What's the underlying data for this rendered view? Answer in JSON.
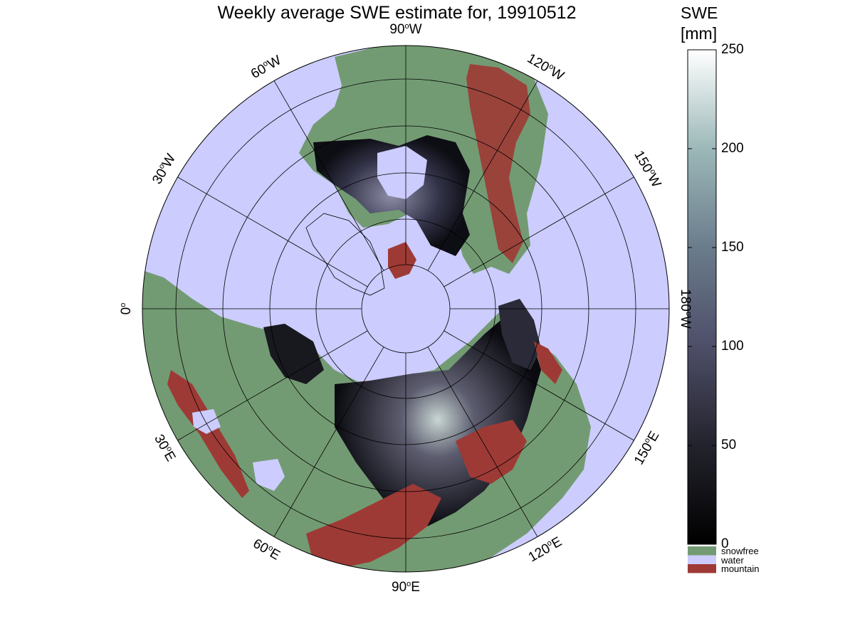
{
  "title": "Weekly average SWE estimate for, 19910512",
  "map": {
    "projection": "north polar stereographic",
    "colors": {
      "water": "#ccccff",
      "snowfree": "#739b73",
      "mountain": "#9e3a35",
      "swe_low": "#000000",
      "swe_high": "#ffffff"
    },
    "longitude_labels": [
      {
        "deg": "90",
        "dir": "W"
      },
      {
        "deg": "120",
        "dir": "W"
      },
      {
        "deg": "150",
        "dir": "W"
      },
      {
        "deg": "180",
        "dir": "W"
      },
      {
        "deg": "150",
        "dir": "E"
      },
      {
        "deg": "120",
        "dir": "E"
      },
      {
        "deg": "90",
        "dir": "E"
      },
      {
        "deg": "60",
        "dir": "E"
      },
      {
        "deg": "30",
        "dir": "E"
      },
      {
        "deg": "0",
        "dir": ""
      },
      {
        "deg": "30",
        "dir": "W"
      },
      {
        "deg": "60",
        "dir": "W"
      }
    ]
  },
  "colorbar": {
    "title_line1": "SWE",
    "title_line2": "[mm]",
    "min": 0,
    "max": 250,
    "ticks": [
      "0",
      "50",
      "100",
      "150",
      "200",
      "250"
    ],
    "legend": [
      {
        "label": "snowfree",
        "color": "#739b73"
      },
      {
        "label": "water",
        "color": "#ccccff"
      },
      {
        "label": "mountain",
        "color": "#9e3a35"
      }
    ]
  }
}
